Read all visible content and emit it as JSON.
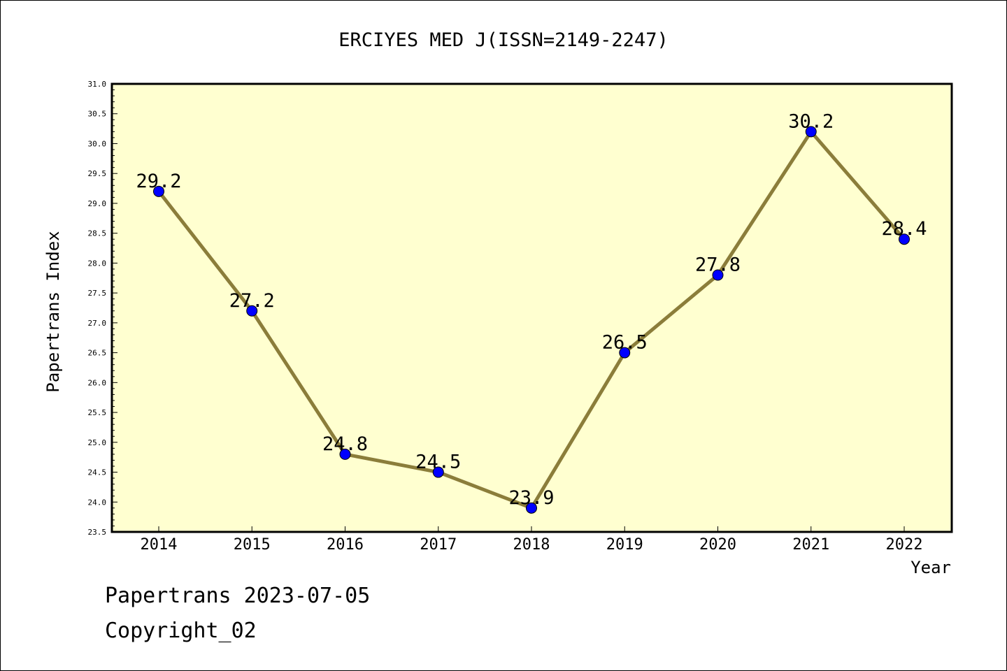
{
  "chart_data": {
    "type": "line",
    "title": "ERCIYES MED J(ISSN=2149-2247)",
    "xlabel": "Year",
    "ylabel": "Papertrans Index",
    "categories": [
      "2014",
      "2015",
      "2016",
      "2017",
      "2018",
      "2019",
      "2020",
      "2021",
      "2022"
    ],
    "values": [
      29.2,
      27.2,
      24.8,
      24.5,
      23.9,
      26.5,
      27.8,
      30.2,
      28.4
    ],
    "data_labels": [
      "29.2",
      "27.2",
      "24.8",
      "24.5",
      "23.9",
      "26.5",
      "27.8",
      "30.2",
      "28.4"
    ],
    "ylim": [
      23.5,
      31.0
    ],
    "ytick_labels": [
      "23.5",
      "24.0",
      "24.5",
      "25.0",
      "25.5",
      "26.0",
      "26.5",
      "27.0",
      "27.5",
      "28.0",
      "28.5",
      "29.0",
      "29.5",
      "30.0",
      "30.5",
      "31.0"
    ],
    "grid": false,
    "legend": "none",
    "colors": {
      "plot_background": "#ffffd0",
      "line": "#8b7d3a",
      "marker": "#0000ff"
    }
  },
  "footer": {
    "line1": "Papertrans 2023-07-05",
    "line2": "Copyright_02"
  }
}
